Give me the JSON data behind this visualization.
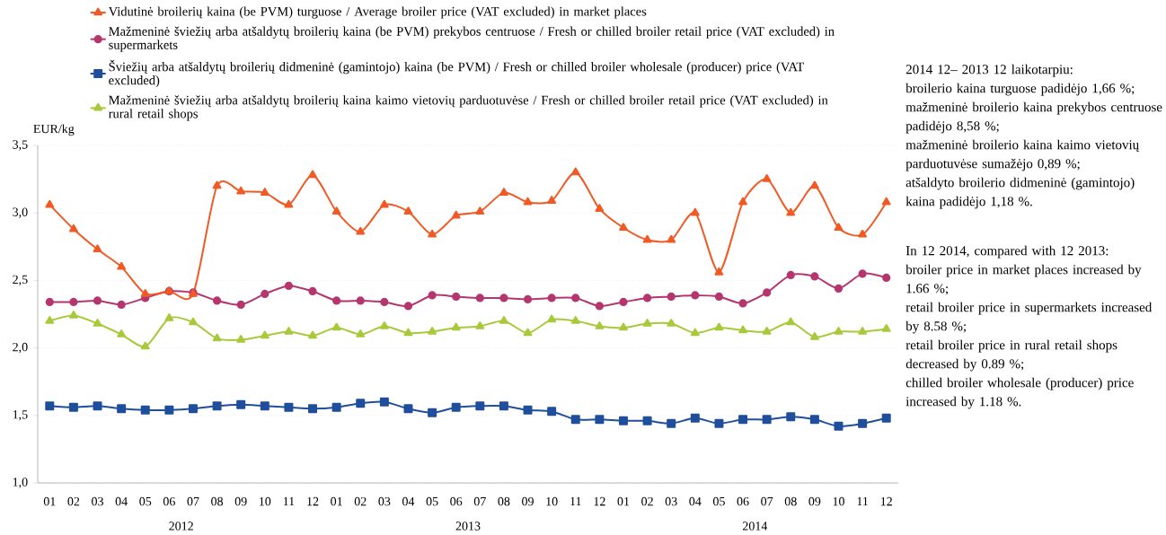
{
  "chart_data": {
    "type": "line",
    "ylabel": "EUR/kg",
    "categories": [
      "01",
      "02",
      "03",
      "04",
      "05",
      "06",
      "07",
      "08",
      "09",
      "10",
      "11",
      "12",
      "01",
      "02",
      "03",
      "04",
      "05",
      "06",
      "07",
      "08",
      "09",
      "10",
      "11",
      "12",
      "01",
      "02",
      "03",
      "04",
      "05",
      "06",
      "07",
      "08",
      "09",
      "10",
      "11",
      "12"
    ],
    "series": [
      {
        "name": "Vidutinė broilerių kaina (be PVM) turguose / Average broiler price  (VAT excluded) in market places",
        "color": "#f15a24",
        "marker": "triangle",
        "values": [
          3.06,
          2.88,
          2.73,
          2.6,
          2.4,
          2.42,
          2.4,
          3.2,
          3.16,
          3.15,
          3.06,
          3.28,
          3.01,
          2.86,
          3.06,
          3.01,
          2.84,
          2.98,
          3.01,
          3.15,
          3.08,
          3.09,
          3.3,
          3.03,
          2.89,
          2.8,
          2.8,
          3.0,
          2.56,
          3.08,
          3.25,
          3.0,
          3.2,
          2.89,
          2.84,
          3.08
        ]
      },
      {
        "name": "Mažmeninė šviežių arba atšaldytų broilerių kaina (be PVM) prekybos centruose / Fresh or chilled broiler retail price (VAT excluded) in supermarkets",
        "color": "#b5366f",
        "marker": "circle",
        "values": [
          2.34,
          2.34,
          2.35,
          2.32,
          2.37,
          2.42,
          2.41,
          2.35,
          2.32,
          2.4,
          2.46,
          2.42,
          2.35,
          2.35,
          2.34,
          2.31,
          2.39,
          2.38,
          2.37,
          2.37,
          2.36,
          2.37,
          2.37,
          2.31,
          2.34,
          2.37,
          2.38,
          2.39,
          2.38,
          2.33,
          2.41,
          2.54,
          2.53,
          2.44,
          2.55,
          2.52
        ]
      },
      {
        "name": "Šviežių arba atšaldytų  broilerių didmeninė (gamintojo) kaina (be PVM) / Fresh or chilled broiler wholesale (producer) price (VAT excluded)",
        "color": "#1f4e9c",
        "marker": "square",
        "values": [
          1.57,
          1.56,
          1.57,
          1.55,
          1.54,
          1.54,
          1.55,
          1.57,
          1.58,
          1.57,
          1.56,
          1.55,
          1.56,
          1.59,
          1.6,
          1.55,
          1.52,
          1.56,
          1.57,
          1.57,
          1.54,
          1.53,
          1.47,
          1.47,
          1.46,
          1.46,
          1.44,
          1.48,
          1.44,
          1.47,
          1.47,
          1.49,
          1.47,
          1.42,
          1.44,
          1.48
        ]
      },
      {
        "name": "Mažmeninė šviežių arba atšaldytų broilerių kaina kaimo vietovių parduotuvėse / Fresh or chilled broiler retail price (VAT excluded) in rural retail shops",
        "color": "#a8c93a",
        "marker": "triangle",
        "values": [
          2.2,
          2.24,
          2.18,
          2.1,
          2.01,
          2.22,
          2.19,
          2.07,
          2.06,
          2.09,
          2.12,
          2.09,
          2.15,
          2.1,
          2.16,
          2.11,
          2.12,
          2.15,
          2.16,
          2.2,
          2.11,
          2.21,
          2.2,
          2.16,
          2.15,
          2.18,
          2.18,
          2.11,
          2.15,
          2.13,
          2.12,
          2.19,
          2.08,
          2.12,
          2.12,
          2.14
        ]
      }
    ],
    "ylim": [
      1.0,
      3.5
    ],
    "yticks": [
      {
        "value": 1.0,
        "label": "1,0"
      },
      {
        "value": 1.5,
        "label": "1,5"
      },
      {
        "value": 2.0,
        "label": "2,0"
      },
      {
        "value": 2.5,
        "label": "2,5"
      },
      {
        "value": 3.0,
        "label": "3,0"
      },
      {
        "value": 3.5,
        "label": "3,5"
      }
    ],
    "grid": "y",
    "legend": "top",
    "line_style": "solid",
    "annotations": [
      "2012",
      "2013",
      "2014",
      "2014 12– 2013 12 laikotarpiu:",
      "broilerio kaina turguose padidėjo 1,66 %;",
      "mažmeninė broilerio kaina prekybos centruose padidėjo 8,58 %;",
      "mažmeninė broilerio kaina kaimo vietovių parduotuvėse sumažėjo 0,89 %;",
      "atšaldyto broilerio didmeninė (gamintojo) kaina padidėjo 1,18 %.",
      "In 12 2014, compared with 12 2013:",
      "broiler price in market places increased by 1.66 %;",
      "retail broiler price in supermarkets increased by 8.58 %;",
      "retail broiler price in rural retail shops decreased by 0.89 %;",
      "chilled broiler wholesale (producer) price increased by 1.18 %."
    ]
  }
}
